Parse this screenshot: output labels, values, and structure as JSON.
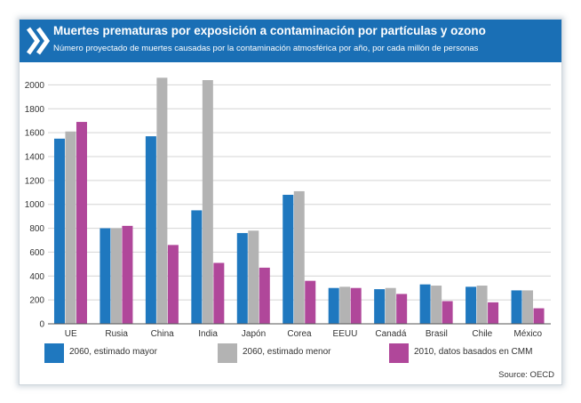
{
  "header": {
    "title": "Muertes prematuras por exposición a contaminación por partículas y ozono",
    "subtitle": "Número proyectado de muertes causadas por la contaminación atmosférica por año, por cada millón de personas",
    "background_color": "#1a6fb5"
  },
  "source": "Source: OECD",
  "chart_data": {
    "type": "bar",
    "title": "Muertes prematuras por exposición a contaminación por partículas y ozono",
    "subtitle": "Número proyectado de muertes causadas por la contaminación atmosférica por año, por cada millón de personas",
    "xlabel": "",
    "ylabel": "",
    "categories": [
      "UE",
      "Rusia",
      "China",
      "India",
      "Japón",
      "Corea",
      "EEUU",
      "Canadá",
      "Brasil",
      "Chile",
      "México"
    ],
    "series": [
      {
        "name": "2060, estimado mayor",
        "color": "#1f78bf",
        "values": [
          1550,
          800,
          1570,
          950,
          760,
          1080,
          300,
          290,
          330,
          310,
          280
        ]
      },
      {
        "name": "2060, estimado menor",
        "color": "#b3b3b3",
        "values": [
          1610,
          800,
          2060,
          2040,
          780,
          1110,
          310,
          300,
          320,
          320,
          280
        ]
      },
      {
        "name": "2010, datos basados en CMM",
        "color": "#b0479a",
        "values": [
          1690,
          820,
          660,
          510,
          470,
          360,
          300,
          250,
          190,
          180,
          130
        ]
      }
    ],
    "ylim": [
      0,
      2100
    ],
    "yticks": [
      0,
      200,
      400,
      600,
      800,
      1000,
      1200,
      1400,
      1600,
      1800,
      2000
    ],
    "grid": true,
    "legend_position": "bottom"
  }
}
